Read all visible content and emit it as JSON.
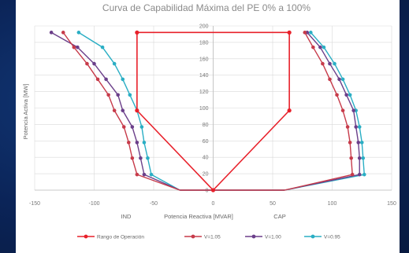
{
  "chart_data": {
    "type": "line",
    "title": "Curva de Capabilidad Máxima del PE 0% a 100%",
    "xlabel": "Potencia Reactiva [MVAR]",
    "ylabel": "Potencia Activa [MW]",
    "xlim": [
      -150,
      150
    ],
    "ylim": [
      0,
      200
    ],
    "xticks": [
      -150,
      -100,
      -50,
      0,
      50,
      100,
      150
    ],
    "yticks": [
      0,
      20,
      40,
      60,
      80,
      100,
      120,
      140,
      160,
      180,
      200
    ],
    "side_labels": {
      "left": "IND",
      "right": "CAP"
    },
    "grid": true,
    "legend_position": "bottom",
    "series": [
      {
        "name": "Rango de Operación",
        "color": "#e8202a",
        "points": [
          [
            -64,
            192
          ],
          [
            -64,
            97
          ],
          [
            0,
            0
          ],
          [
            64,
            97
          ],
          [
            64,
            192
          ],
          [
            -64,
            192
          ]
        ]
      },
      {
        "name": "V=1.05",
        "color": "#c73b4a",
        "points_left": [
          [
            -28,
            0
          ],
          [
            -64,
            19
          ],
          [
            -68,
            39
          ],
          [
            -71,
            58
          ],
          [
            -75,
            77
          ],
          [
            -83,
            97
          ],
          [
            -88,
            116
          ],
          [
            -97,
            135
          ],
          [
            -106,
            154
          ],
          [
            -117,
            174
          ],
          [
            -126,
            192
          ]
        ],
        "points_right": [
          [
            -28,
            0
          ],
          [
            60,
            0
          ],
          [
            117,
            19
          ],
          [
            116,
            39
          ],
          [
            115,
            58
          ],
          [
            113,
            77
          ],
          [
            109,
            97
          ],
          [
            104,
            116
          ],
          [
            98,
            135
          ],
          [
            92,
            154
          ],
          [
            84,
            174
          ],
          [
            77,
            192
          ]
        ]
      },
      {
        "name": "V=1.00",
        "color": "#6b3f8a",
        "points_left": [
          [
            -28,
            0
          ],
          [
            -58,
            19
          ],
          [
            -61,
            39
          ],
          [
            -64,
            58
          ],
          [
            -68,
            77
          ],
          [
            -76,
            97
          ],
          [
            -80,
            116
          ],
          [
            -90,
            135
          ],
          [
            -100,
            154
          ],
          [
            -114,
            174
          ],
          [
            -136,
            192
          ]
        ],
        "points_right": [
          [
            -28,
            0
          ],
          [
            60,
            0
          ],
          [
            123,
            19
          ],
          [
            123,
            39
          ],
          [
            122,
            58
          ],
          [
            120,
            77
          ],
          [
            118,
            97
          ],
          [
            112,
            116
          ],
          [
            106,
            135
          ],
          [
            98,
            154
          ],
          [
            90,
            174
          ],
          [
            79,
            192
          ]
        ]
      },
      {
        "name": "V=0.95",
        "color": "#2aaec4",
        "points_left": [
          [
            -28,
            0
          ],
          [
            -52,
            19
          ],
          [
            -55,
            39
          ],
          [
            -58,
            58
          ],
          [
            -60,
            77
          ],
          [
            -64,
            97
          ],
          [
            -70,
            116
          ],
          [
            -76,
            135
          ],
          [
            -83,
            154
          ],
          [
            -93,
            174
          ],
          [
            -113,
            192
          ]
        ],
        "points_right": [
          [
            -28,
            0
          ],
          [
            60,
            0
          ],
          [
            127,
            19
          ],
          [
            126,
            39
          ],
          [
            125,
            58
          ],
          [
            123,
            77
          ],
          [
            120,
            97
          ],
          [
            115,
            116
          ],
          [
            109,
            135
          ],
          [
            102,
            154
          ],
          [
            93,
            174
          ],
          [
            82,
            192
          ]
        ]
      }
    ]
  }
}
